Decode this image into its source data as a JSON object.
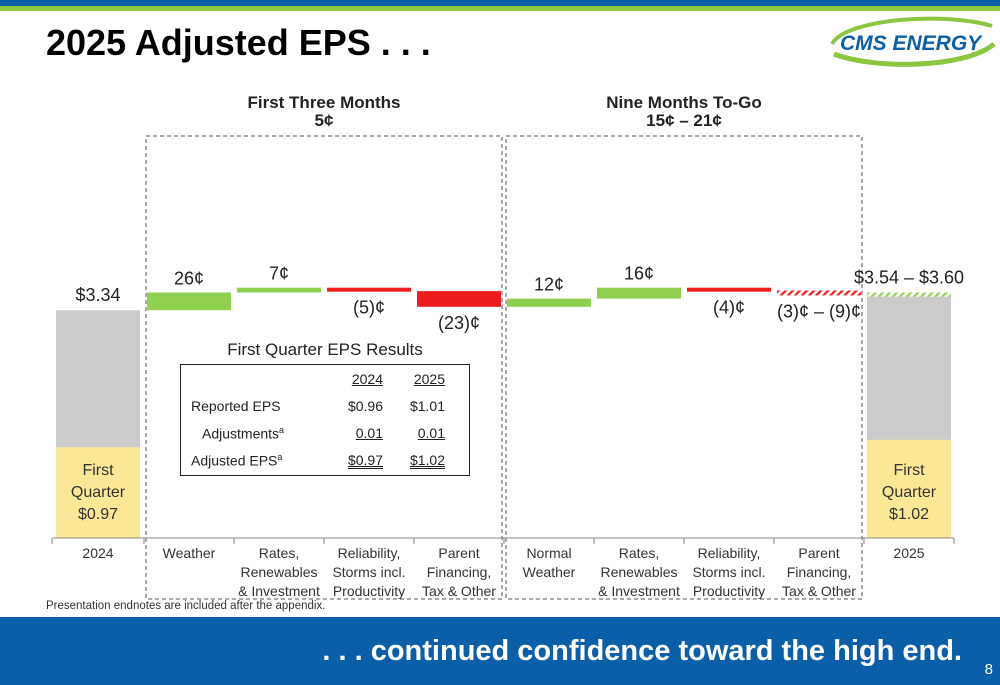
{
  "slide": {
    "title": "2025 Adjusted EPS . . .",
    "footer": ". . . continued confidence toward the high end.",
    "page_number": "8",
    "endnote": "Presentation endnotes are included after the appendix.",
    "logo_text": "CMS ENERGY"
  },
  "colors": {
    "blue": "#0a5fa8",
    "green": "#8cc63f",
    "positive": "#8fd14f",
    "negative": "#ee1c1c",
    "base": "#cbcbcb",
    "quarter": "#fce797"
  },
  "chart_data": {
    "type": "bar",
    "subtype": "waterfall",
    "unit": "dollars per share",
    "sections": [
      {
        "title": "First Three Months",
        "subtitle": "5¢"
      },
      {
        "title": "Nine Months To-Go",
        "subtitle": "15¢ – 21¢"
      }
    ],
    "categories": [
      "2024",
      "Weather",
      "Rates, Renewables & Investment",
      "Reliability, Storms incl. Productivity",
      "Parent Financing, Tax & Other",
      "Normal Weather",
      "Rates, Renewables & Investment",
      "Reliability, Storms incl. Productivity",
      "Parent Financing, Tax & Other",
      "2025"
    ],
    "category_lines": [
      [
        "2024"
      ],
      [
        "Weather"
      ],
      [
        "Rates,",
        "Renewables",
        "& Investment"
      ],
      [
        "Reliability,",
        "Storms incl.",
        "Productivity"
      ],
      [
        "Parent",
        "Financing,",
        "Tax & Other"
      ],
      [
        "Normal",
        "Weather"
      ],
      [
        "Rates,",
        "Renewables",
        "& Investment"
      ],
      [
        "Reliability,",
        "Storms incl.",
        "Productivity"
      ],
      [
        "Parent",
        "Financing,",
        "Tax & Other"
      ],
      [
        "2025"
      ]
    ],
    "bars": [
      {
        "kind": "base",
        "value": 3.34,
        "label": "$3.34",
        "inner_label": [
          "First",
          "Quarter",
          "$0.97"
        ],
        "inner_value": 0.97
      },
      {
        "kind": "delta",
        "value": 0.26,
        "label": "26¢"
      },
      {
        "kind": "delta",
        "value": 0.07,
        "label": "7¢"
      },
      {
        "kind": "delta",
        "value": -0.05,
        "label": "(5)¢"
      },
      {
        "kind": "delta",
        "value": -0.23,
        "label": "(23)¢"
      },
      {
        "kind": "delta",
        "value": 0.12,
        "label": "12¢"
      },
      {
        "kind": "delta",
        "value": 0.16,
        "label": "16¢"
      },
      {
        "kind": "delta",
        "value": -0.04,
        "label": "(4)¢"
      },
      {
        "kind": "delta_range",
        "low": -0.09,
        "high": -0.03,
        "label": "(3)¢ – (9)¢"
      },
      {
        "kind": "total_range",
        "low": 3.54,
        "high": 3.6,
        "label": "$3.54 – $3.60",
        "inner_label": [
          "First",
          "Quarter",
          "$1.02"
        ],
        "inner_value": 1.02
      }
    ]
  },
  "eps_table": {
    "title": "First Quarter EPS Results",
    "columns": [
      "2024",
      "2025"
    ],
    "rows": [
      {
        "label": "Reported EPS",
        "v2024": "$0.96",
        "v2025": "$1.01"
      },
      {
        "label": "Adjustments",
        "sup": "a",
        "v2024": "0.01",
        "v2025": "0.01"
      },
      {
        "label": "Adjusted EPS",
        "sup": "a",
        "v2024": "$0.97",
        "v2025": "$1.02"
      }
    ]
  }
}
